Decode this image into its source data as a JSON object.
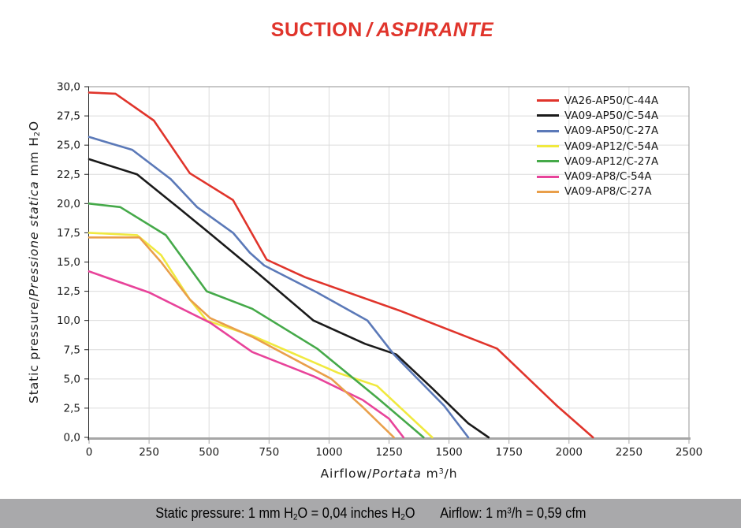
{
  "title": {
    "text_main": "SUCTION",
    "text_separator": "/",
    "text_italic": "ASPIRANTE",
    "color": "#e0342b"
  },
  "y_axis": {
    "title_segments": [
      {
        "t": "Static pressure/"
      },
      {
        "t": "Pressione statica",
        "i": true
      },
      {
        "t": " mm H"
      },
      {
        "t": "2",
        "sub": true
      },
      {
        "t": "O"
      }
    ]
  },
  "x_axis": {
    "title_segments": [
      {
        "t": "Airflow/"
      },
      {
        "t": "Portata",
        "i": true
      },
      {
        "t": " m"
      },
      {
        "t": "3",
        "sup": true
      },
      {
        "t": "/h"
      }
    ]
  },
  "footer": {
    "bg_color": "#a9a9ab",
    "left_segments": [
      {
        "t": "Static pressure: 1 mm H"
      },
      {
        "t": "2",
        "sub": true
      },
      {
        "t": "O = 0,04 inches H"
      },
      {
        "t": "2",
        "sub": true
      },
      {
        "t": "O"
      }
    ],
    "right_segments": [
      {
        "t": "Airflow: 1 m"
      },
      {
        "t": "3",
        "sup": true
      },
      {
        "t": "/h = 0,59 cfm"
      }
    ]
  },
  "chart_data": {
    "type": "line",
    "title": "SUCTION / ASPIRANTE",
    "xlabel": "Airflow/Portata m3/h",
    "ylabel": "Static pressure/Pressione statica mm H2O",
    "xlim": [
      0,
      2500
    ],
    "ylim": [
      0,
      30
    ],
    "x_tick_step": 250,
    "y_tick_step": 2.5,
    "x_ticks": [
      "0",
      "250",
      "500",
      "750",
      "1000",
      "1250",
      "1500",
      "1750",
      "2000",
      "2250",
      "2500"
    ],
    "y_ticks": [
      "30,0",
      "27,5",
      "25,0",
      "22,5",
      "20,0",
      "17,5",
      "15,0",
      "12,5",
      "10,0",
      "7,5",
      "5,0",
      "2,5",
      "0,0"
    ],
    "grid": true,
    "grid_color": "#dcdcdc",
    "border_color": "#a6a6a6",
    "axis_color": "#222222",
    "legend_position": "top-right",
    "series": [
      {
        "name": "VA26-AP50/C-44A",
        "color": "#e0342b",
        "points": [
          [
            0,
            29.5
          ],
          [
            110,
            29.4
          ],
          [
            270,
            27.1
          ],
          [
            420,
            22.6
          ],
          [
            600,
            20.3
          ],
          [
            740,
            15.2
          ],
          [
            900,
            13.7
          ],
          [
            1300,
            10.8
          ],
          [
            1700,
            7.6
          ],
          [
            1950,
            2.7
          ],
          [
            2100,
            0
          ]
        ]
      },
      {
        "name": "VA09-AP50/C-54A",
        "color": "#1a1a1a",
        "points": [
          [
            0,
            23.8
          ],
          [
            200,
            22.5
          ],
          [
            375,
            19.6
          ],
          [
            500,
            17.5
          ],
          [
            700,
            14.1
          ],
          [
            935,
            10.0
          ],
          [
            1150,
            8.0
          ],
          [
            1280,
            7.1
          ],
          [
            1430,
            4.2
          ],
          [
            1580,
            1.2
          ],
          [
            1665,
            0
          ]
        ]
      },
      {
        "name": "VA09-AP50/C-27A",
        "color": "#5b79b8",
        "points": [
          [
            0,
            25.7
          ],
          [
            180,
            24.6
          ],
          [
            340,
            22.1
          ],
          [
            450,
            19.7
          ],
          [
            600,
            17.5
          ],
          [
            670,
            15.8
          ],
          [
            730,
            14.7
          ],
          [
            950,
            12.4
          ],
          [
            1160,
            10.0
          ],
          [
            1270,
            7.1
          ],
          [
            1360,
            5.2
          ],
          [
            1480,
            2.7
          ],
          [
            1580,
            0
          ]
        ]
      },
      {
        "name": "VA09-AP12/C-54A",
        "color": "#f0e93f",
        "points": [
          [
            0,
            17.5
          ],
          [
            200,
            17.3
          ],
          [
            300,
            15.6
          ],
          [
            420,
            11.8
          ],
          [
            490,
            10.0
          ],
          [
            680,
            8.7
          ],
          [
            1040,
            5.5
          ],
          [
            1200,
            4.4
          ],
          [
            1430,
            0
          ]
        ]
      },
      {
        "name": "VA09-AP12/C-27A",
        "color": "#45a949",
        "points": [
          [
            0,
            20.0
          ],
          [
            130,
            19.7
          ],
          [
            320,
            17.3
          ],
          [
            490,
            12.5
          ],
          [
            680,
            11.0
          ],
          [
            950,
            7.6
          ],
          [
            1200,
            3.4
          ],
          [
            1394,
            0
          ]
        ]
      },
      {
        "name": "VA09-AP8/C-54A",
        "color": "#e8439a",
        "points": [
          [
            0,
            14.2
          ],
          [
            250,
            12.4
          ],
          [
            505,
            9.8
          ],
          [
            680,
            7.3
          ],
          [
            940,
            5.2
          ],
          [
            1140,
            3.2
          ],
          [
            1250,
            1.6
          ],
          [
            1310,
            0
          ]
        ]
      },
      {
        "name": "VA09-AP8/C-27A",
        "color": "#e99f4a",
        "points": [
          [
            0,
            17.1
          ],
          [
            210,
            17.1
          ],
          [
            300,
            15.0
          ],
          [
            420,
            11.8
          ],
          [
            505,
            10.2
          ],
          [
            680,
            8.6
          ],
          [
            1010,
            5.0
          ],
          [
            1140,
            2.6
          ],
          [
            1270,
            0
          ]
        ]
      }
    ]
  }
}
